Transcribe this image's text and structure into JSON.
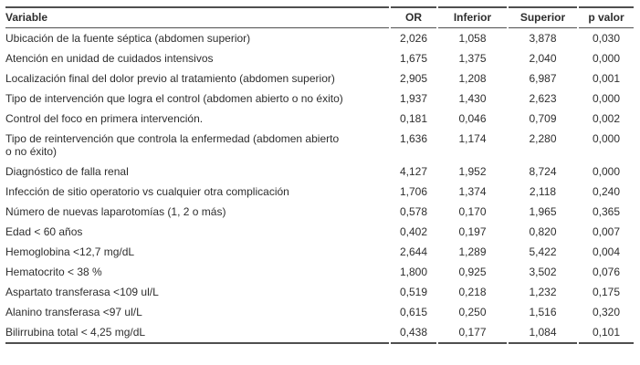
{
  "colors": {
    "background": "#ffffff",
    "text": "#2e2e2e",
    "rule": "#4f4f4f"
  },
  "table": {
    "columns": [
      "Variable",
      "OR",
      "Inferior",
      "Superior",
      "p valor"
    ],
    "rows": [
      {
        "variable": "Ubicación de la fuente séptica (abdomen superior)",
        "or": "2,026",
        "inferior": "1,058",
        "superior": "3,878",
        "p_valor": "0,030"
      },
      {
        "variable": "Atención en unidad de cuidados intensivos",
        "or": "1,675",
        "inferior": "1,375",
        "superior": "2,040",
        "p_valor": "0,000"
      },
      {
        "variable": "Localización final del dolor previo al tratamiento (abdomen superior)",
        "or": "2,905",
        "inferior": "1,208",
        "superior": "6,987",
        "p_valor": "0,001"
      },
      {
        "variable": "Tipo de intervención que logra el control (abdomen abierto o no éxito)",
        "or": "1,937",
        "inferior": "1,430",
        "superior": "2,623",
        "p_valor": "0,000"
      },
      {
        "variable": "Control del foco en primera intervención.",
        "or": "0,181",
        "inferior": "0,046",
        "superior": "0,709",
        "p_valor": "0,002"
      },
      {
        "variable": "Tipo de reintervención que controla la enfermedad (abdomen abierto\no no éxito)",
        "or": "1,636",
        "inferior": "1,174",
        "superior": "2,280",
        "p_valor": "0,000"
      },
      {
        "variable": "Diagnóstico de falla renal",
        "or": "4,127",
        "inferior": "1,952",
        "superior": "8,724",
        "p_valor": "0,000"
      },
      {
        "variable": "Infección de sitio operatorio vs cualquier otra complicación",
        "or": "1,706",
        "inferior": "1,374",
        "superior": "2,118",
        "p_valor": "0,240"
      },
      {
        "variable": "Número de nuevas laparotomías (1, 2 o más)",
        "or": "0,578",
        "inferior": "0,170",
        "superior": "1,965",
        "p_valor": "0,365"
      },
      {
        "variable": "Edad < 60 años",
        "or": "0,402",
        "inferior": "0,197",
        "superior": "0,820",
        "p_valor": "0,007"
      },
      {
        "variable": "Hemoglobina <12,7 mg/dL",
        "or": "2,644",
        "inferior": "1,289",
        "superior": "5,422",
        "p_valor": "0,004"
      },
      {
        "variable": "Hematocrito < 38 %",
        "or": "1,800",
        "inferior": "0,925",
        "superior": "3,502",
        "p_valor": "0,076"
      },
      {
        "variable": "Aspartato transferasa <109 ul/L",
        "or": "0,519",
        "inferior": "0,218",
        "superior": "1,232",
        "p_valor": "0,175"
      },
      {
        "variable": "Alanino transferasa <97 ul/L",
        "or": "0,615",
        "inferior": "0,250",
        "superior": "1,516",
        "p_valor": "0,320"
      },
      {
        "variable": "Bilirrubina total < 4,25 mg/dL",
        "or": "0,438",
        "inferior": "0,177",
        "superior": "1,084",
        "p_valor": "0,101"
      }
    ]
  }
}
